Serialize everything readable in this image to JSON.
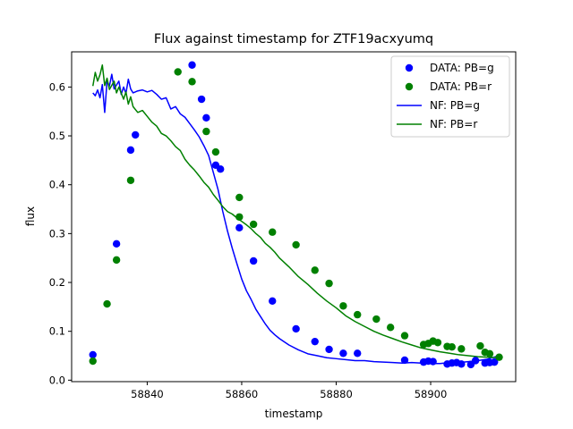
{
  "chart_data": {
    "type": "scatter",
    "title": "Flux against timestamp for ZTF19acxyumq",
    "xlabel": "timestamp",
    "ylabel": "flux",
    "xlim": [
      58824,
      58918
    ],
    "ylim": [
      -0.003,
      0.672
    ],
    "xticks": [
      58840,
      58860,
      58880,
      58900
    ],
    "yticks": [
      0.0,
      0.1,
      0.2,
      0.3,
      0.4,
      0.5,
      0.6
    ],
    "grid": false,
    "legend_position": "top-right",
    "legend": [
      "DATA: PB=g",
      "DATA: PB=r",
      "NF: PB=g",
      "NF: PB=r"
    ],
    "colors": {
      "g": "#0000ff",
      "r": "#008000"
    },
    "series": [
      {
        "name": "DATA: PB=g",
        "kind": "scatter",
        "color": "#0000ff",
        "points": [
          [
            58828.5,
            0.052
          ],
          [
            58833.5,
            0.279
          ],
          [
            58836.5,
            0.471
          ],
          [
            58837.5,
            0.502
          ],
          [
            58849.5,
            0.645
          ],
          [
            58851.5,
            0.575
          ],
          [
            58852.5,
            0.537
          ],
          [
            58854.5,
            0.44
          ],
          [
            58855.5,
            0.432
          ],
          [
            58859.5,
            0.312
          ],
          [
            58862.5,
            0.244
          ],
          [
            58866.5,
            0.162
          ],
          [
            58871.5,
            0.105
          ],
          [
            58875.5,
            0.079
          ],
          [
            58878.5,
            0.063
          ],
          [
            58881.5,
            0.055
          ],
          [
            58884.5,
            0.055
          ],
          [
            58894.5,
            0.041
          ],
          [
            58898.5,
            0.037
          ],
          [
            58899.5,
            0.039
          ],
          [
            58900.5,
            0.038
          ],
          [
            58903.5,
            0.033
          ],
          [
            58904.5,
            0.035
          ],
          [
            58905.5,
            0.036
          ],
          [
            58906.5,
            0.033
          ],
          [
            58908.5,
            0.032
          ],
          [
            58909.5,
            0.04
          ],
          [
            58911.5,
            0.035
          ],
          [
            58912.5,
            0.036
          ],
          [
            58913.5,
            0.037
          ]
        ]
      },
      {
        "name": "DATA: PB=r",
        "kind": "scatter",
        "color": "#008000",
        "points": [
          [
            58828.5,
            0.039
          ],
          [
            58831.5,
            0.156
          ],
          [
            58833.5,
            0.246
          ],
          [
            58836.5,
            0.409
          ],
          [
            58846.5,
            0.631
          ],
          [
            58849.5,
            0.611
          ],
          [
            58852.5,
            0.509
          ],
          [
            58854.5,
            0.467
          ],
          [
            58859.5,
            0.374
          ],
          [
            58859.5,
            0.334
          ],
          [
            58862.5,
            0.319
          ],
          [
            58866.5,
            0.303
          ],
          [
            58871.5,
            0.277
          ],
          [
            58875.5,
            0.225
          ],
          [
            58878.5,
            0.198
          ],
          [
            58881.5,
            0.152
          ],
          [
            58884.5,
            0.134
          ],
          [
            58888.5,
            0.125
          ],
          [
            58891.5,
            0.108
          ],
          [
            58894.5,
            0.091
          ],
          [
            58898.5,
            0.073
          ],
          [
            58899.5,
            0.075
          ],
          [
            58900.5,
            0.08
          ],
          [
            58901.5,
            0.077
          ],
          [
            58903.5,
            0.069
          ],
          [
            58904.5,
            0.068
          ],
          [
            58906.5,
            0.064
          ],
          [
            58910.5,
            0.07
          ],
          [
            58911.5,
            0.057
          ],
          [
            58912.5,
            0.054
          ],
          [
            58914.5,
            0.047
          ]
        ]
      },
      {
        "name": "NF: PB=g",
        "kind": "line",
        "color": "#0000ff",
        "points": [
          [
            58828.5,
            0.588
          ],
          [
            58829,
            0.582
          ],
          [
            58829.5,
            0.594
          ],
          [
            58830,
            0.578
          ],
          [
            58830.5,
            0.605
          ],
          [
            58831,
            0.548
          ],
          [
            58831.5,
            0.612
          ],
          [
            58832,
            0.602
          ],
          [
            58832.5,
            0.626
          ],
          [
            58833,
            0.596
          ],
          [
            58834,
            0.612
          ],
          [
            58834.5,
            0.585
          ],
          [
            58835,
            0.6
          ],
          [
            58835.5,
            0.587
          ],
          [
            58836,
            0.616
          ],
          [
            58836.5,
            0.596
          ],
          [
            58837,
            0.588
          ],
          [
            58838,
            0.592
          ],
          [
            58839,
            0.594
          ],
          [
            58840,
            0.59
          ],
          [
            58841,
            0.593
          ],
          [
            58842,
            0.585
          ],
          [
            58843,
            0.575
          ],
          [
            58844,
            0.578
          ],
          [
            58845,
            0.555
          ],
          [
            58846,
            0.56
          ],
          [
            58847,
            0.545
          ],
          [
            58848,
            0.538
          ],
          [
            58849,
            0.525
          ],
          [
            58850,
            0.512
          ],
          [
            58851,
            0.498
          ],
          [
            58852,
            0.48
          ],
          [
            58853,
            0.46
          ],
          [
            58854,
            0.425
          ],
          [
            58855,
            0.39
          ],
          [
            58856,
            0.345
          ],
          [
            58857,
            0.305
          ],
          [
            58858,
            0.27
          ],
          [
            58859,
            0.238
          ],
          [
            58860,
            0.207
          ],
          [
            58861,
            0.183
          ],
          [
            58862,
            0.165
          ],
          [
            58863,
            0.145
          ],
          [
            58864,
            0.13
          ],
          [
            58865,
            0.115
          ],
          [
            58866,
            0.102
          ],
          [
            58867,
            0.093
          ],
          [
            58868,
            0.085
          ],
          [
            58870,
            0.072
          ],
          [
            58872,
            0.062
          ],
          [
            58874,
            0.054
          ],
          [
            58876,
            0.05
          ],
          [
            58878,
            0.046
          ],
          [
            58880,
            0.044
          ],
          [
            58882,
            0.042
          ],
          [
            58884,
            0.04
          ],
          [
            58886,
            0.04
          ],
          [
            58888,
            0.038
          ],
          [
            58890,
            0.037
          ],
          [
            58892,
            0.036
          ],
          [
            58894,
            0.035
          ],
          [
            58896,
            0.036
          ],
          [
            58898,
            0.035
          ],
          [
            58900,
            0.034
          ],
          [
            58902,
            0.034
          ],
          [
            58904,
            0.036
          ],
          [
            58906,
            0.036
          ],
          [
            58908,
            0.038
          ],
          [
            58910,
            0.04
          ],
          [
            58912,
            0.043
          ],
          [
            58913,
            0.046
          ],
          [
            58914.5,
            0.05
          ]
        ]
      },
      {
        "name": "NF: PB=r",
        "kind": "line",
        "color": "#008000",
        "points": [
          [
            58828.5,
            0.602
          ],
          [
            58829,
            0.63
          ],
          [
            58829.5,
            0.612
          ],
          [
            58830,
            0.625
          ],
          [
            58830.5,
            0.645
          ],
          [
            58831,
            0.603
          ],
          [
            58831.5,
            0.618
          ],
          [
            58832,
            0.595
          ],
          [
            58833,
            0.612
          ],
          [
            58833.5,
            0.588
          ],
          [
            58834,
            0.6
          ],
          [
            58835,
            0.575
          ],
          [
            58835.5,
            0.59
          ],
          [
            58836,
            0.565
          ],
          [
            58836.5,
            0.58
          ],
          [
            58837,
            0.56
          ],
          [
            58838,
            0.548
          ],
          [
            58839,
            0.552
          ],
          [
            58840,
            0.54
          ],
          [
            58841,
            0.528
          ],
          [
            58842,
            0.52
          ],
          [
            58843,
            0.505
          ],
          [
            58844,
            0.5
          ],
          [
            58845,
            0.49
          ],
          [
            58846,
            0.478
          ],
          [
            58847,
            0.47
          ],
          [
            58848,
            0.452
          ],
          [
            58849,
            0.44
          ],
          [
            58850,
            0.43
          ],
          [
            58851,
            0.418
          ],
          [
            58852,
            0.405
          ],
          [
            58853,
            0.395
          ],
          [
            58854,
            0.38
          ],
          [
            58855,
            0.368
          ],
          [
            58856,
            0.355
          ],
          [
            58857,
            0.345
          ],
          [
            58858,
            0.34
          ],
          [
            58859,
            0.332
          ],
          [
            58860,
            0.325
          ],
          [
            58861,
            0.318
          ],
          [
            58862,
            0.31
          ],
          [
            58863,
            0.3
          ],
          [
            58864,
            0.292
          ],
          [
            58865,
            0.28
          ],
          [
            58866,
            0.272
          ],
          [
            58867,
            0.262
          ],
          [
            58868,
            0.25
          ],
          [
            58870,
            0.232
          ],
          [
            58872,
            0.212
          ],
          [
            58874,
            0.196
          ],
          [
            58876,
            0.178
          ],
          [
            58878,
            0.162
          ],
          [
            58880,
            0.148
          ],
          [
            58882,
            0.132
          ],
          [
            58884,
            0.12
          ],
          [
            58886,
            0.11
          ],
          [
            58888,
            0.1
          ],
          [
            58890,
            0.092
          ],
          [
            58892,
            0.085
          ],
          [
            58894,
            0.078
          ],
          [
            58896,
            0.072
          ],
          [
            58898,
            0.066
          ],
          [
            58900,
            0.062
          ],
          [
            58902,
            0.058
          ],
          [
            58904,
            0.055
          ],
          [
            58906,
            0.052
          ],
          [
            58908,
            0.05
          ],
          [
            58910,
            0.048
          ],
          [
            58912,
            0.047
          ],
          [
            58914.5,
            0.046
          ]
        ]
      }
    ]
  }
}
